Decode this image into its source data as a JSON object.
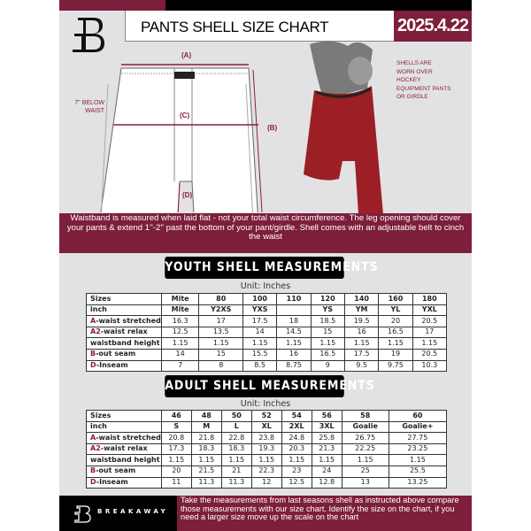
{
  "header": {
    "title": "PANTS SHELL SIZE CHART",
    "date": "2025.4.22"
  },
  "diagram": {
    "label_a": "(A)",
    "label_b": "(B)",
    "label_c": "(C)",
    "label_d": "(D)",
    "below_waist": "7'' BELOW WAIST",
    "note": "SHELLS ARE WORN OVER HOCKEY EQUIPMENT PANTS OR GIRDLE"
  },
  "banner": "Waistband is measured when laid flat - not your total waist circumference. The leg opening should cover your pants & extend 1''-2'' past the bottom of your pant/girdle. Shell comes with an adjustable belt to cinch the waist",
  "youth": {
    "heading": "YOUTH SHELL MEASUREMENTS",
    "unit": "Unit: Inches",
    "rows": [
      [
        "Sizes",
        "Mite",
        "80",
        "100",
        "110",
        "120",
        "140",
        "160",
        "180"
      ],
      [
        "inch",
        "Mite",
        "Y2XS",
        "YXS",
        "",
        "YS",
        "YM",
        "YL",
        "YXL"
      ],
      [
        "A|-waist stretched",
        "16.3",
        "17",
        "17.5",
        "18",
        "18.5",
        "19.5",
        "20",
        "20.5"
      ],
      [
        "A2|-waist relax",
        "12.5",
        "13.5",
        "14",
        "14.5",
        "15",
        "16",
        "16.5",
        "17"
      ],
      [
        "|waistband height",
        "1.15",
        "1.15",
        "1.15",
        "1.15",
        "1.15",
        "1.15",
        "1.15",
        "1.15"
      ],
      [
        "B|-out seam",
        "14",
        "15",
        "15.5",
        "16",
        "16.5",
        "17.5",
        "19",
        "20.5"
      ],
      [
        "D|-Inseam",
        "7",
        "8",
        "8.5",
        "8.75",
        "9",
        "9.5",
        "9.75",
        "10.3"
      ]
    ]
  },
  "adult": {
    "heading": "ADULT SHELL MEASUREMENTS",
    "unit": "Unit: Inches",
    "rows": [
      [
        "Sizes",
        "46",
        "48",
        "50",
        "52",
        "54",
        "56",
        "58",
        "60"
      ],
      [
        "inch",
        "S",
        "M",
        "L",
        "XL",
        "2XL",
        "3XL",
        "Goalie",
        "Goalie+"
      ],
      [
        "A|-waist stretched",
        "20.8",
        "21.8",
        "22.8",
        "23.8",
        "24.8",
        "25.8",
        "26.75",
        "27.75"
      ],
      [
        "A2|-waist relax",
        "17.3",
        "18.3",
        "18.3",
        "19.3",
        "20.3",
        "21.3",
        "22.25",
        "23.25"
      ],
      [
        "|waistband height",
        "1.15",
        "1.15",
        "1.15",
        "1.15",
        "1.15",
        "1.15",
        "1.15",
        "1.15"
      ],
      [
        "B|-out seam",
        "20",
        "21.5",
        "21",
        "22.3",
        "23",
        "24",
        "25",
        "25.5"
      ],
      [
        "D|-Inseam",
        "11",
        "11.3",
        "11.3",
        "12",
        "12.5",
        "12.8",
        "13",
        "13.25"
      ]
    ]
  },
  "footer": {
    "brand": "BREAKAWAY",
    "text": "Take the measurements from last seasons shell as instructed above compare those measurements  with our size chart. Identify the size on the chart, if you need a larger size move up the scale on the chart"
  },
  "colors": {
    "accent": "#7d1f3a",
    "panel": "#e2e2e5"
  }
}
